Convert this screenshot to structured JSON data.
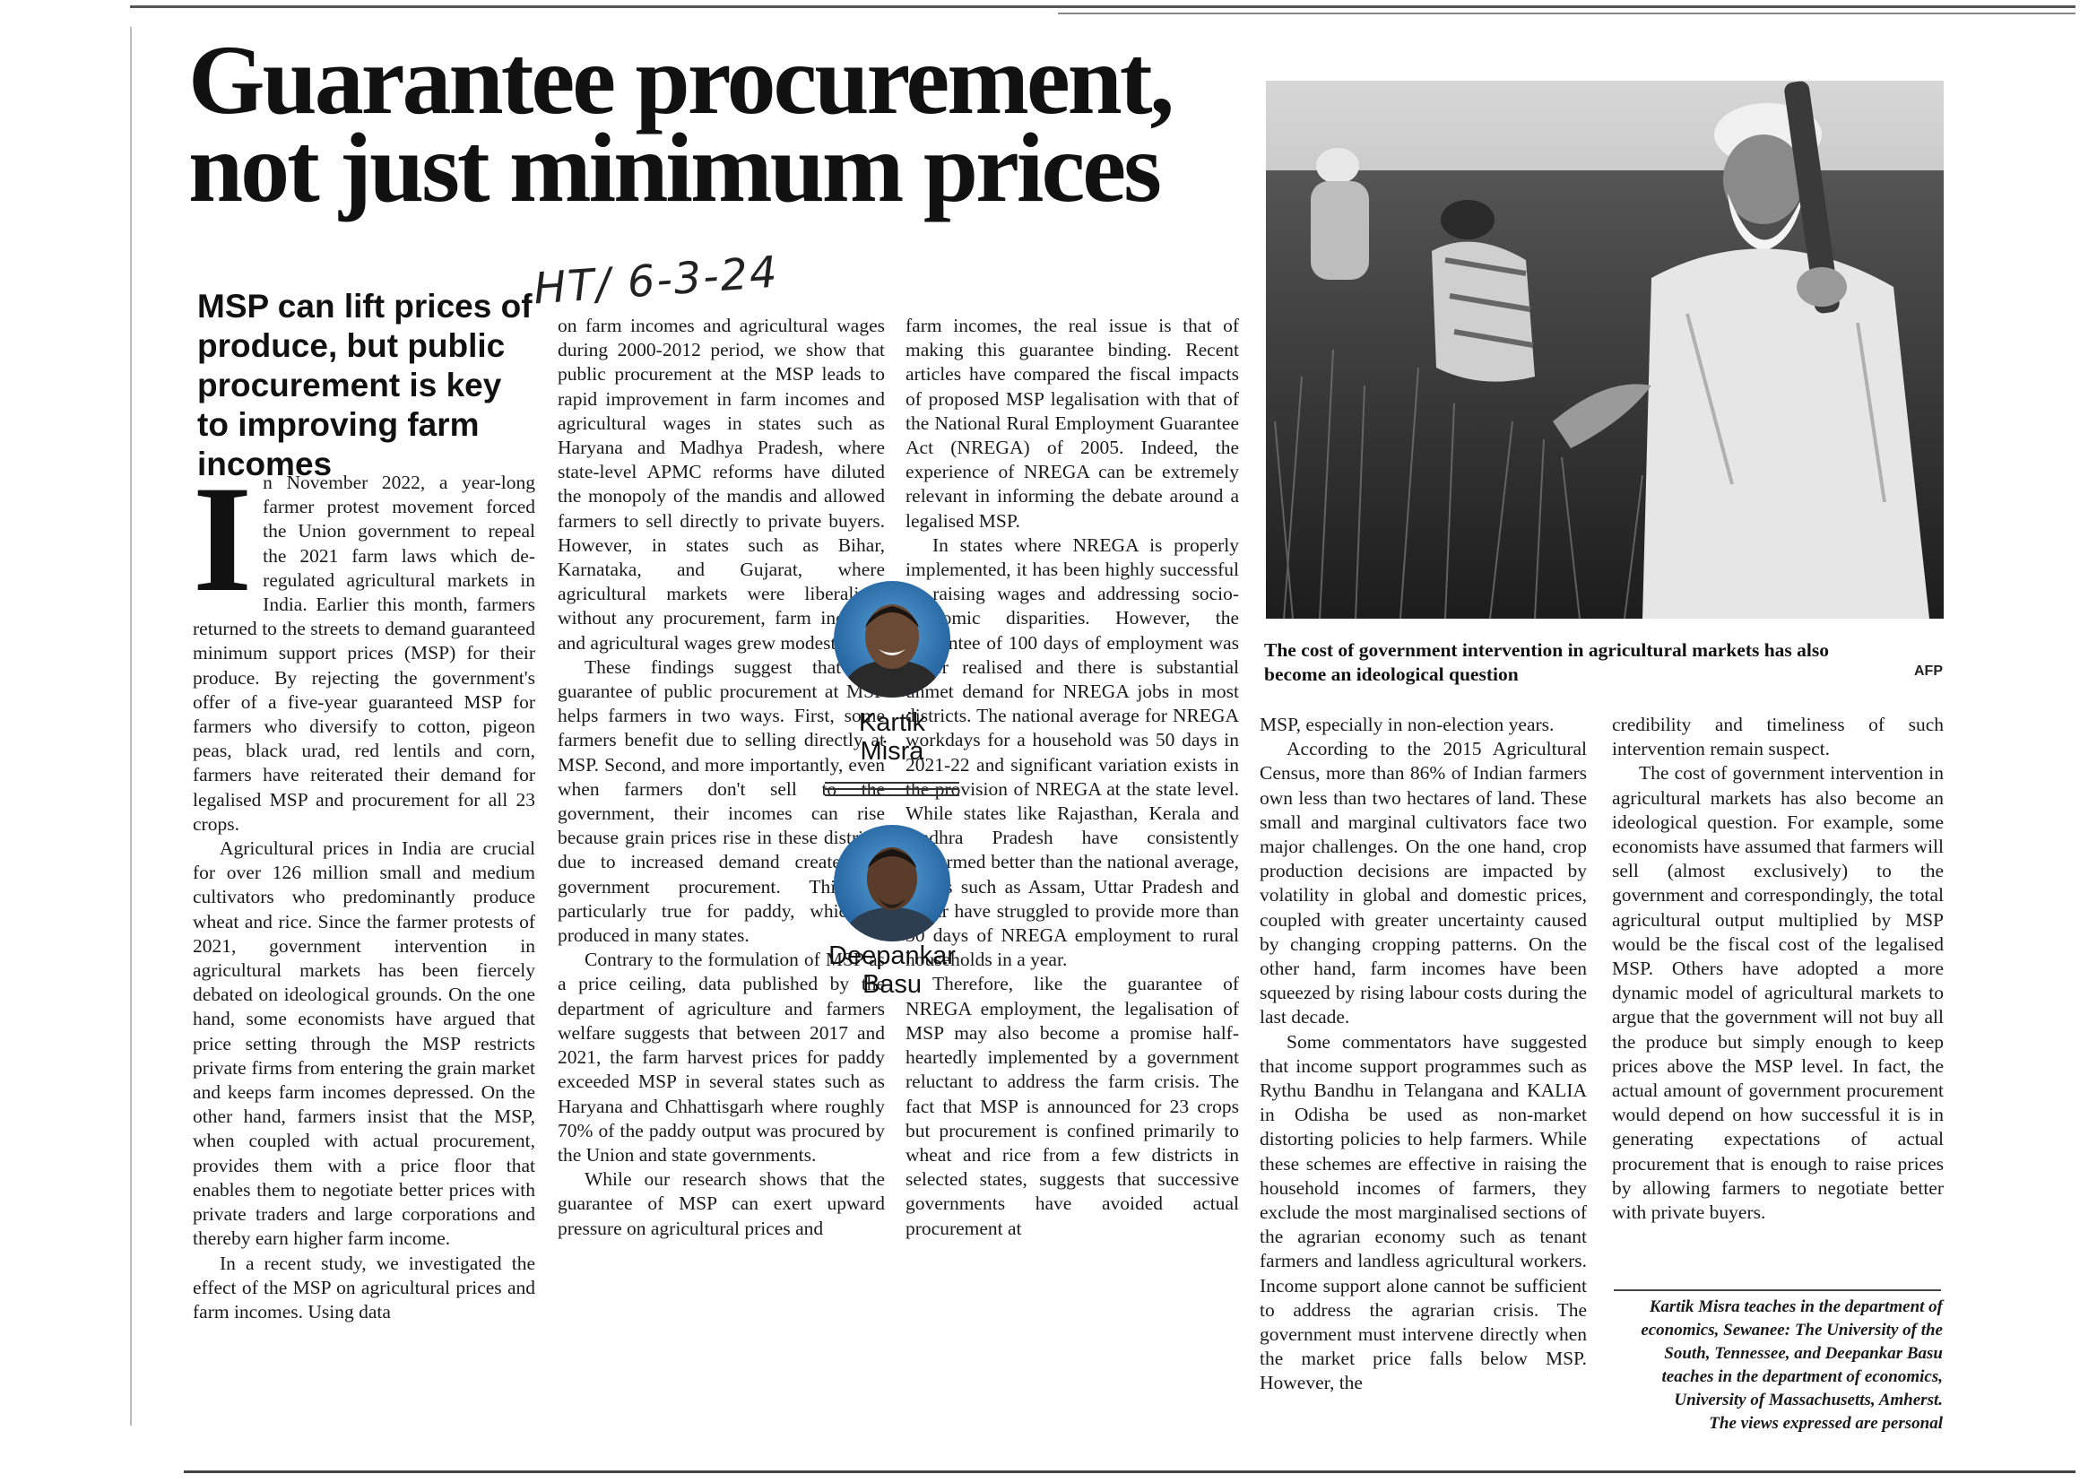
{
  "handwritten_date": "HT/ 6-3-24",
  "headline": "Guarantee procurement, not just minimum prices",
  "deck": "MSP can lift prices of produce, but public procurement is key to improving farm incomes",
  "dropcap": "I",
  "col1": [
    "n November 2022, a year-long farmer protest movement forced the Union government to repeal the 2021 farm laws which de-regulated agricultural markets in India. Earlier this month, farmers returned to the streets to demand guaranteed minimum support prices (MSP) for their produce. By rejecting the government's offer of a five-year guaranteed MSP for farmers who diversify to cotton, pigeon peas, black urad, red lentils and corn, farmers have reiterated their demand for legalised MSP and procurement for all 23 crops.",
    "Agricultural prices in India are crucial for over 126 million small and medium cultivators who predominantly produce wheat and rice. Since the farmer protests of 2021, government intervention in agricultural markets has been fiercely debated on ideological grounds. On the one hand, some economists have argued that price setting through the MSP restricts private firms from entering the grain market and keeps farm incomes depressed. On the other hand, farmers insist that the MSP, when coupled with actual procurement, provides them with a price floor that enables them to negotiate better prices with private traders and large corporations and thereby earn higher farm income.",
    "In a recent study, we investigated the effect of the MSP on agricultural prices and farm incomes. Using data"
  ],
  "col2": [
    "on farm incomes and agricultural wages during 2000-2012 period, we show that public procurement at the MSP leads to rapid improvement in farm incomes and agricultural wages in states such as Haryana and Madhya Pradesh, where state-level APMC reforms have diluted the monopoly of the mandis and allowed farmers to sell directly to private buyers. However, in states such as Bihar, Karnataka, and Gujarat, where agricultural markets were liberalised without any procurement, farm incomes and agricultural wages grew modestly.",
    "These findings suggest that the guarantee of public procurement at MSP helps farmers in two ways. First, some farmers benefit due to selling directly at MSP. Second, and more importantly, even when farmers don't sell to the government, their incomes can rise because grain prices rise in these districts due to increased demand created by government procurement. This is particularly true for paddy, which is produced in many states.",
    "Contrary to the formulation of MSP as a price ceiling, data published by the department of agriculture and farmers welfare suggests that between 2017 and 2021, the farm harvest prices for paddy exceeded MSP in several states such as Haryana and Chhattisgarh where roughly 70% of the paddy output was procured by the Union and state governments.",
    "While our research shows that the guarantee of MSP can exert upward pressure on agricultural prices and"
  ],
  "col3": [
    "farm incomes, the real issue is that of making this guarantee binding. Recent articles have compared the fiscal impacts of proposed MSP legalisation with that of the National Rural Employment Guarantee Act (NREGA) of 2005. Indeed, the experience of NREGA can be extremely relevant in informing the debate around a legalised MSP.",
    "In states where NREGA is properly implemented, it has been highly successful in raising wages and addressing socio-economic disparities. However, the guarantee of 100 days of employment was never realised and there is substantial unmet demand for NREGA jobs in most districts. The national average for NREGA workdays for a household was 50 days in 2021-22 and significant variation exists in the provision of NREGA at the state level. While states like Rajasthan, Kerala and Andhra Pradesh have consistently performed better than the national average, others such as Assam, Uttar Pradesh and Bihar have struggled to provide more than 30 days of NREGA employment to rural households in a year.",
    "Therefore, like the guarantee of NREGA employment, the legalisation of MSP may also become a promise half-heartedly implemented by a government reluctant to address the farm crisis. The fact that MSP is announced for 23 crops but procurement is confined primarily to wheat and rice from a few districts in selected states, suggests that successive governments have avoided actual procurement at"
  ],
  "col4": [
    "MSP, especially in non-election years.",
    "According to the 2015 Agricultural Census, more than 86% of Indian farmers own less than two hectares of land. These small and marginal cultivators face two major challenges. On the one hand, crop production decisions are impacted by volatility in global and domestic prices, coupled with greater uncertainty caused by changing cropping patterns. On the other hand, farm incomes have been squeezed by rising labour costs during the last decade.",
    "Some commentators have suggested that income support programmes such as Rythu Bandhu in Telangana and KALIA in Odisha be used as non-market distorting policies to help farmers. While these schemes are effective in raising the household incomes of farmers, they exclude the most marginalised sections of the agrarian economy such as tenant farmers and landless agricultural workers. Income support alone cannot be sufficient to address the agrarian crisis. The government must intervene directly when the market price falls below MSP. However, the"
  ],
  "col5": [
    "credibility and timeliness of such intervention remain suspect.",
    "The cost of government intervention in agricultural markets has also become an ideological question. For example, some economists have assumed that farmers will sell (almost exclusively) to the government and correspondingly, the total agricultural output multiplied by MSP would be the fiscal cost of the legalised MSP. Others have adopted a more dynamic model of agricultural markets to argue that the government will not buy all the produce but simply enough to keep prices above the MSP level. In fact, the actual amount of government procurement would depend on how successful it is in generating expectations of actual procurement that is enough to raise prices by allowing farmers to negotiate better with private buyers."
  ],
  "authors": [
    {
      "name_line1": "Kartik",
      "name_line2": "Misra"
    },
    {
      "name_line1": "Deepankar",
      "name_line2": "Basu"
    }
  ],
  "photo": {
    "caption": "The cost of government intervention in agricultural markets has also become an ideological question",
    "credit": "AFP"
  },
  "bio": [
    "Kartik Misra teaches in the department of economics, Sewanee: The University of the South, Tennessee, and Deepankar Basu teaches in the department of economics, University of Massachusetts, Amherst.",
    "The views expressed are personal"
  ]
}
